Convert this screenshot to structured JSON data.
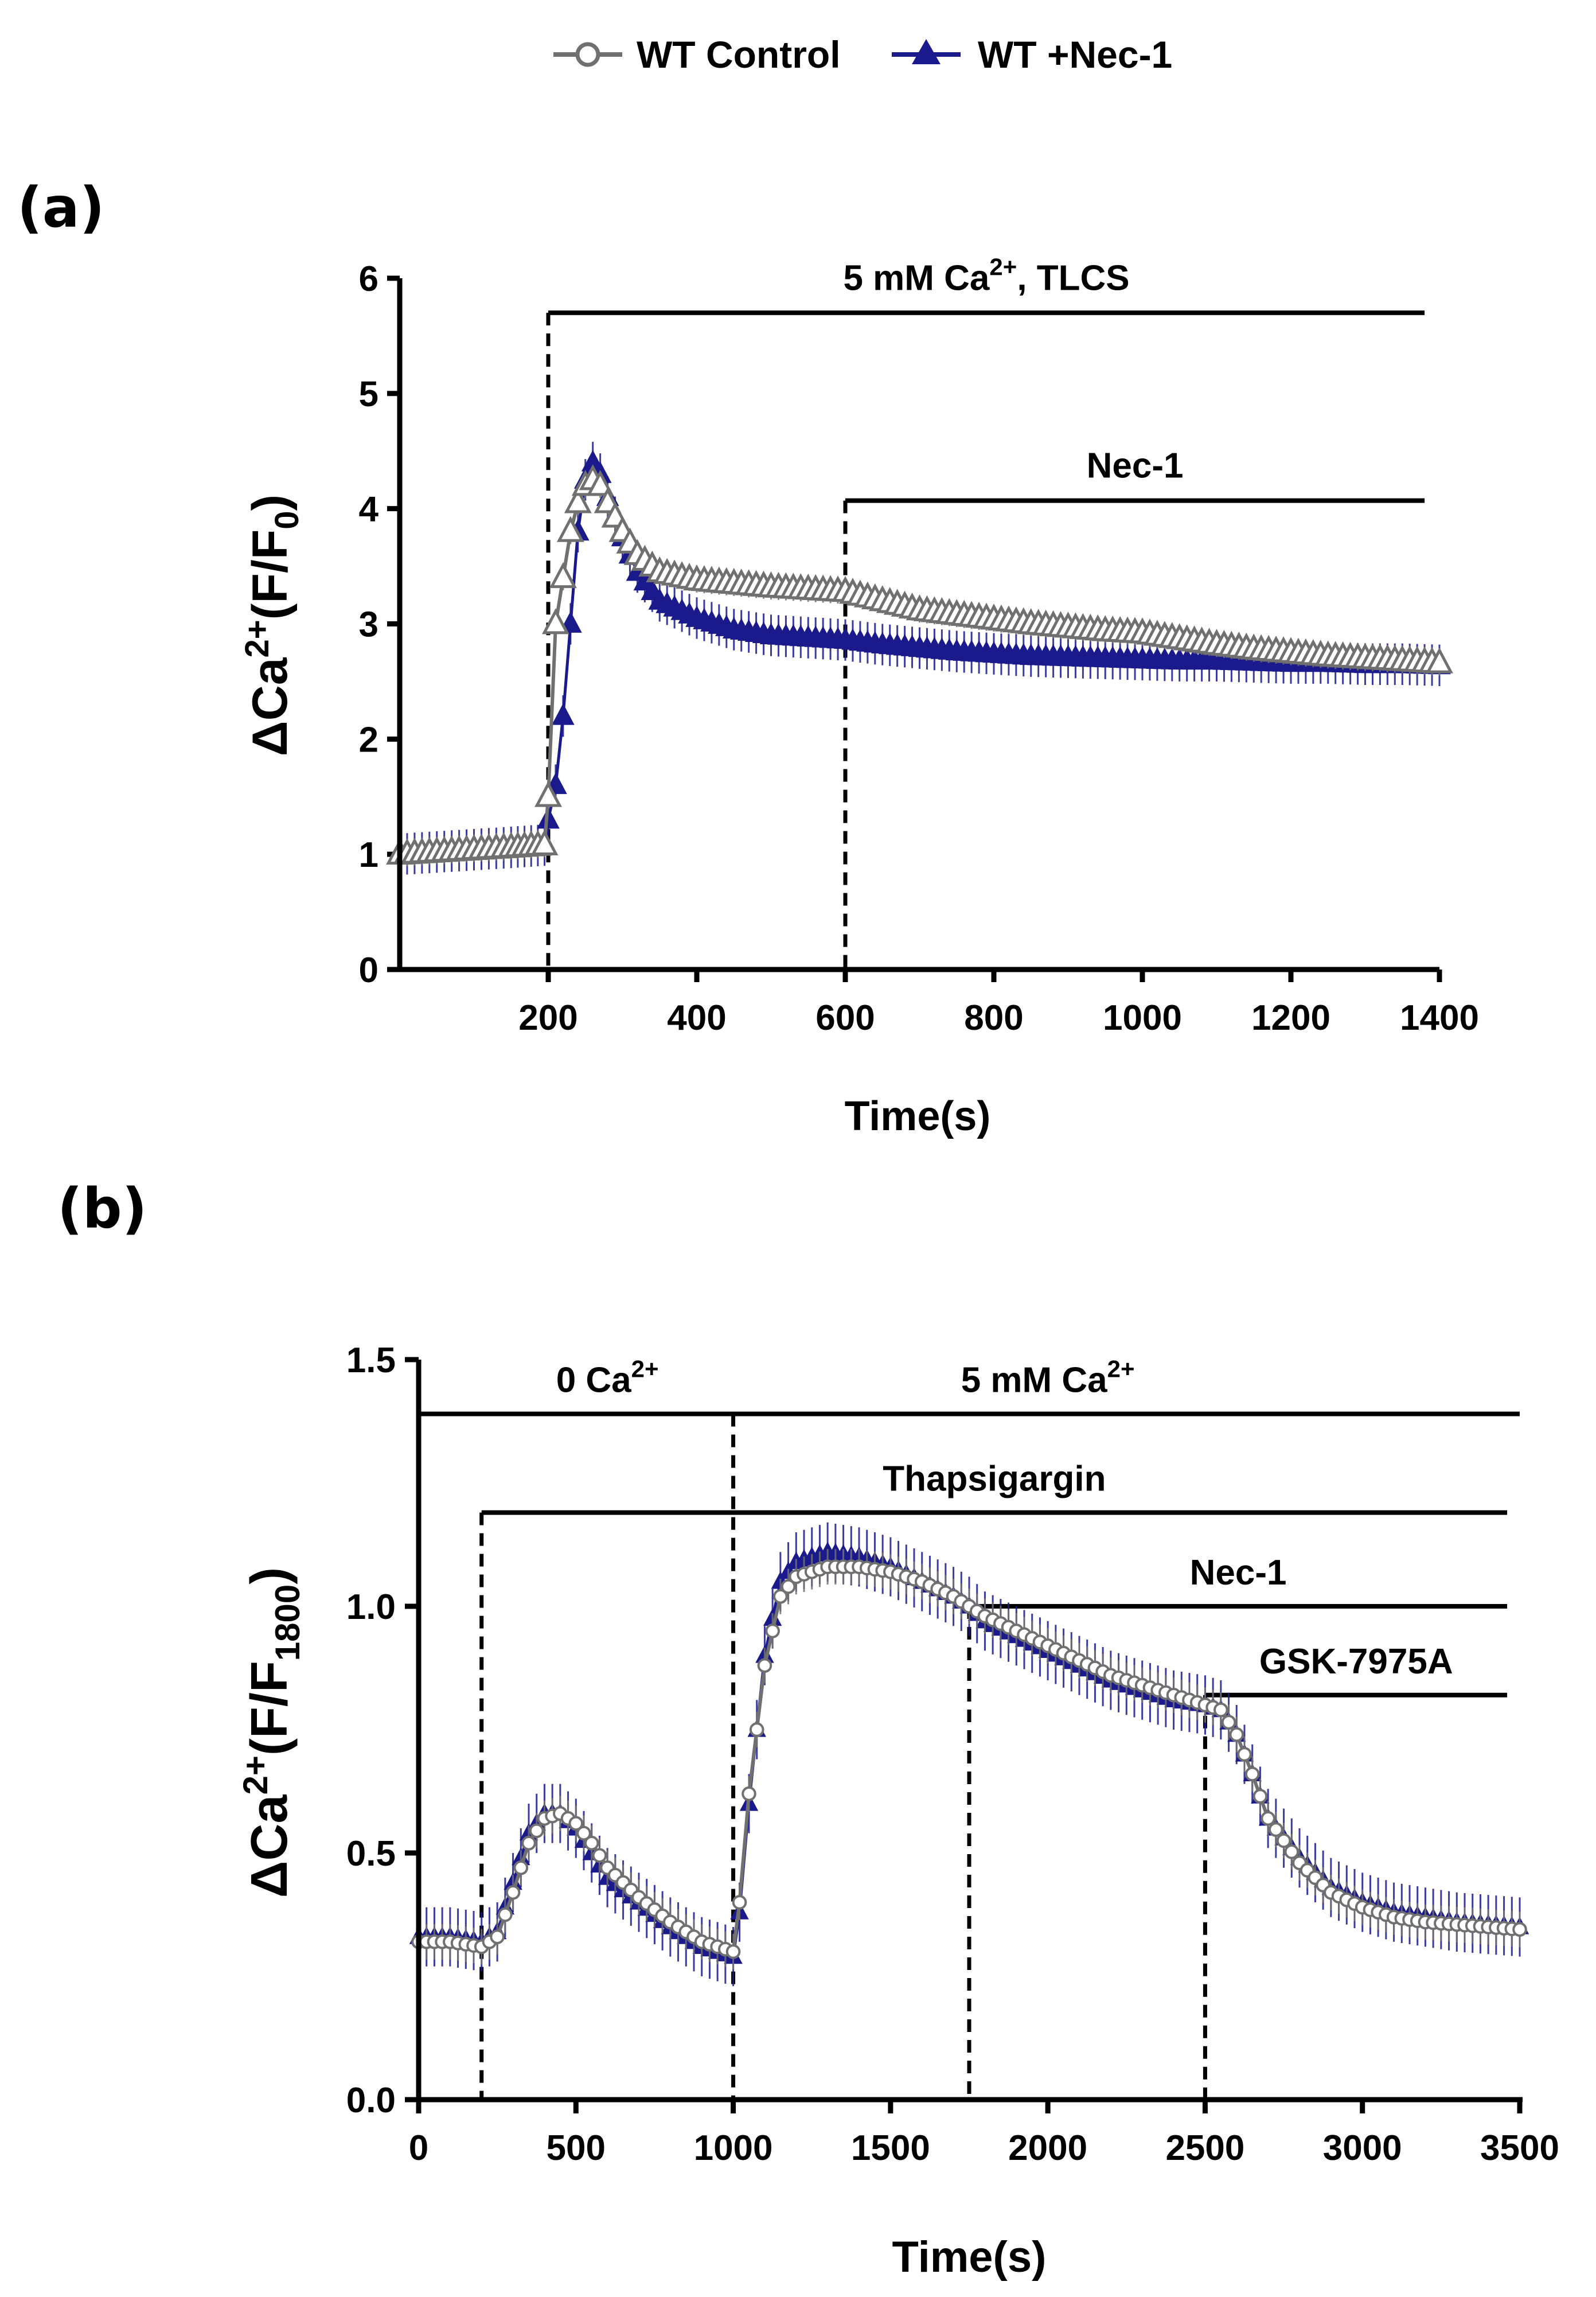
{
  "legend": {
    "items": [
      {
        "label": "WT Control",
        "color": "#707070",
        "marker": "open-circle"
      },
      {
        "label": "WT +Nec-1",
        "color": "#1a1a8c",
        "marker": "filled-triangle"
      }
    ]
  },
  "chart_data": [
    {
      "panel_label": "(a)",
      "type": "line",
      "xlabel": "Time(s)",
      "ylabel": {
        "prefix": "ΔCa",
        "sup": "2+",
        "mid": "(F/F",
        "sub": "0",
        "suffix": ")"
      },
      "xlim": [
        0,
        1400
      ],
      "ylim": [
        0,
        6
      ],
      "xticks": [
        200,
        400,
        600,
        800,
        1000,
        1200,
        1400
      ],
      "yticks": [
        0,
        1,
        2,
        3,
        4,
        5,
        6
      ],
      "series": [
        {
          "name": "WT Control",
          "x": [
            0,
            50,
            100,
            150,
            195,
            200,
            210,
            220,
            230,
            240,
            250,
            260,
            270,
            280,
            300,
            320,
            350,
            400,
            450,
            500,
            550,
            600,
            650,
            700,
            750,
            800,
            850,
            900,
            950,
            1000,
            1050,
            1100,
            1150,
            1200,
            1250,
            1300,
            1350,
            1400
          ],
          "y": [
            1.0,
            1.02,
            1.04,
            1.06,
            1.08,
            1.5,
            3.0,
            3.4,
            3.8,
            4.05,
            4.2,
            4.25,
            4.2,
            4.05,
            3.8,
            3.6,
            3.45,
            3.38,
            3.35,
            3.32,
            3.3,
            3.28,
            3.2,
            3.12,
            3.08,
            3.04,
            3.0,
            2.97,
            2.94,
            2.92,
            2.87,
            2.82,
            2.78,
            2.75,
            2.72,
            2.7,
            2.68,
            2.66
          ]
        },
        {
          "name": "WT +Nec-1",
          "x": [
            0,
            50,
            100,
            150,
            195,
            200,
            210,
            220,
            230,
            240,
            250,
            260,
            270,
            280,
            300,
            320,
            350,
            400,
            450,
            500,
            550,
            600,
            650,
            700,
            750,
            800,
            850,
            900,
            950,
            1000,
            1050,
            1100,
            1150,
            1200,
            1250,
            1300,
            1350,
            1400
          ],
          "y": [
            1.0,
            1.02,
            1.04,
            1.06,
            1.08,
            1.3,
            1.6,
            2.2,
            3.0,
            3.8,
            4.25,
            4.4,
            4.3,
            4.1,
            3.75,
            3.45,
            3.2,
            3.05,
            2.95,
            2.9,
            2.88,
            2.86,
            2.82,
            2.79,
            2.76,
            2.74,
            2.72,
            2.71,
            2.7,
            2.69,
            2.68,
            2.68,
            2.67,
            2.66,
            2.66,
            2.65,
            2.65,
            2.64
          ]
        }
      ],
      "annotations": [
        {
          "text": "5 mM Ca",
          "sup": "2+",
          "after": ", TLCS",
          "x_start": 200,
          "x_end": 1380,
          "y": 5.7
        },
        {
          "text": "Nec-1",
          "sup": "",
          "after": "",
          "x_start": 600,
          "x_end": 1380,
          "y": 4.07
        }
      ],
      "dashed_markers": [
        {
          "x": 200,
          "y_top": 5.7
        },
        {
          "x": 600,
          "y_top": 4.07
        }
      ]
    },
    {
      "panel_label": "(b)",
      "type": "line",
      "xlabel": "Time(s)",
      "ylabel": {
        "prefix": "ΔCa",
        "sup": "2+",
        "mid": "(F/F",
        "sub": "1800",
        "suffix": ")"
      },
      "xlim": [
        0,
        3500
      ],
      "ylim": [
        0.0,
        1.5
      ],
      "xticks": [
        0,
        500,
        1000,
        1500,
        2000,
        2500,
        3000,
        3500
      ],
      "ytick_labels": [
        "0.0",
        "0.5",
        "1.0",
        "1.5"
      ],
      "yticks": [
        0.0,
        0.5,
        1.0,
        1.5
      ],
      "series": [
        {
          "name": "WT Control",
          "x": [
            0,
            100,
            200,
            250,
            300,
            350,
            400,
            450,
            500,
            550,
            600,
            700,
            800,
            900,
            1000,
            1020,
            1050,
            1100,
            1150,
            1200,
            1300,
            1400,
            1500,
            1600,
            1700,
            1750,
            1800,
            1900,
            2000,
            2100,
            2200,
            2300,
            2400,
            2500,
            2550,
            2600,
            2650,
            2700,
            2800,
            2900,
            3000,
            3100,
            3200,
            3300,
            3400,
            3500
          ],
          "y": [
            0.32,
            0.32,
            0.31,
            0.33,
            0.42,
            0.52,
            0.57,
            0.58,
            0.56,
            0.52,
            0.47,
            0.41,
            0.36,
            0.32,
            0.3,
            0.4,
            0.62,
            0.88,
            1.02,
            1.06,
            1.08,
            1.08,
            1.07,
            1.05,
            1.02,
            1.0,
            0.98,
            0.95,
            0.92,
            0.89,
            0.86,
            0.84,
            0.82,
            0.8,
            0.79,
            0.74,
            0.66,
            0.57,
            0.48,
            0.42,
            0.39,
            0.37,
            0.36,
            0.355,
            0.35,
            0.345
          ]
        },
        {
          "name": "WT +Nec-1",
          "x": [
            0,
            100,
            200,
            250,
            300,
            350,
            400,
            450,
            500,
            550,
            600,
            700,
            800,
            900,
            1000,
            1020,
            1050,
            1100,
            1150,
            1200,
            1300,
            1400,
            1500,
            1600,
            1700,
            1750,
            1800,
            1900,
            2000,
            2100,
            2200,
            2300,
            2400,
            2500,
            2550,
            2600,
            2650,
            2700,
            2800,
            2900,
            3000,
            3100,
            3200,
            3300,
            3400,
            3500
          ],
          "y": [
            0.33,
            0.33,
            0.32,
            0.34,
            0.44,
            0.54,
            0.58,
            0.58,
            0.55,
            0.5,
            0.45,
            0.4,
            0.35,
            0.31,
            0.29,
            0.38,
            0.6,
            0.9,
            1.05,
            1.09,
            1.11,
            1.1,
            1.08,
            1.05,
            1.02,
            1.0,
            0.97,
            0.94,
            0.91,
            0.88,
            0.85,
            0.83,
            0.81,
            0.8,
            0.79,
            0.74,
            0.66,
            0.57,
            0.49,
            0.43,
            0.4,
            0.38,
            0.37,
            0.36,
            0.355,
            0.35
          ]
        }
      ],
      "annotations": [
        {
          "text": "0 Ca",
          "sup": "2+",
          "after": "",
          "x_start": 0,
          "x_end": 3500,
          "y": 1.39,
          "label_x": 600
        },
        {
          "text": "5 mM Ca",
          "sup": "2+",
          "after": "",
          "x_start": 0,
          "x_end": 3500,
          "y": 1.39,
          "label_x": 2000,
          "no_line": true
        },
        {
          "text": "Thapsigargin",
          "sup": "",
          "after": "",
          "x_start": 200,
          "x_end": 3460,
          "y": 1.19
        },
        {
          "text": "Nec-1",
          "sup": "",
          "after": "",
          "x_start": 1750,
          "x_end": 3460,
          "y": 1.0
        },
        {
          "text": "GSK-7975A",
          "sup": "",
          "after": "",
          "x_start": 2500,
          "x_end": 3460,
          "y": 0.82
        }
      ],
      "dashed_markers": [
        {
          "x": 200,
          "y_top": 1.19
        },
        {
          "x": 1000,
          "y_top": 1.39
        },
        {
          "x": 1750,
          "y_top": 1.0
        },
        {
          "x": 2500,
          "y_top": 0.82
        }
      ]
    }
  ]
}
